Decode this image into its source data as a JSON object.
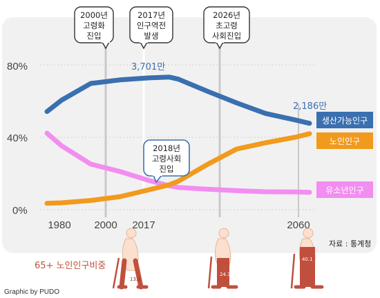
{
  "chart_data": {
    "type": "line",
    "x": [
      1975,
      1980,
      1990,
      2000,
      2010,
      2017,
      2020,
      2030,
      2040,
      2050,
      2060,
      2065
    ],
    "x_ticks": [
      "1980",
      "2000",
      "2017",
      "2060"
    ],
    "y_ticks": [
      "0%",
      "40%",
      "80%"
    ],
    "ylim": [
      0,
      100
    ],
    "series": [
      {
        "name": "생산가능인구",
        "color": "#3a6fb0",
        "values": [
          54.2,
          60.5,
          69.7,
          71.7,
          72.8,
          73.2,
          72.1,
          65.4,
          59.0,
          53.1,
          49.6,
          47.7
        ]
      },
      {
        "name": "노인인구",
        "color": "#f19a1d",
        "values": [
          3.5,
          3.8,
          5.1,
          7.2,
          11.0,
          13.8,
          15.7,
          25.0,
          33.5,
          37.0,
          40.0,
          42.0
        ]
      },
      {
        "name": "유소년인구",
        "color": "#f28ef0",
        "values": [
          42.3,
          35.3,
          25.2,
          21.1,
          16.1,
          13.2,
          12.3,
          11.3,
          10.5,
          9.9,
          9.8,
          9.6
        ]
      }
    ],
    "annotations": [
      {
        "text": "3,701만",
        "color": "#3a6fb0"
      },
      {
        "text": "2,186만",
        "color": "#3a6fb0"
      }
    ],
    "callouts": [
      {
        "line1": "2000년",
        "line2": "고령화",
        "line3": "진입"
      },
      {
        "line1": "2017년",
        "line2": "인구역전",
        "line3": "발생"
      },
      {
        "line1": "2026년",
        "line2": "초고령",
        "line3": "사회진입"
      },
      {
        "line1": "2018년",
        "line2": "고령사회",
        "line3": "진입"
      }
    ],
    "labels": {
      "elderly_ratio": "65+ 노인인구비중",
      "source": "자료 : 통계청",
      "credit": "Graphic by PUDO"
    },
    "elderly_ratio_values": [
      "13.1",
      "24.3",
      "40.1"
    ]
  }
}
